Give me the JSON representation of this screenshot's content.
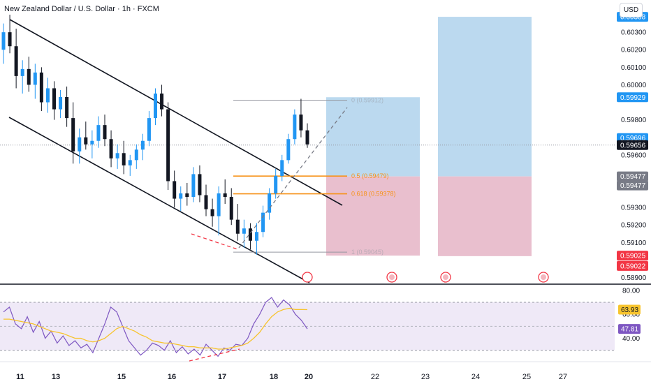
{
  "header": {
    "title": "New Zealand Dollar / U.S. Dollar · 1h · FXCM",
    "currency": "USD"
  },
  "chart_data": [
    {
      "type": "candlestick",
      "title": "New Zealand Dollar / U.S. Dollar · 1h · FXCM",
      "price_axis": {
        "ticks": [
          "0.60300",
          "0.60200",
          "0.60100",
          "0.60000",
          "0.59800",
          "0.59600",
          "0.59300",
          "0.59200",
          "0.59100",
          "0.58900"
        ],
        "ylim": [
          0.5887,
          0.6046
        ]
      },
      "price_badges": [
        {
          "label": "0.60388",
          "color": "#2196f3"
        },
        {
          "label": "0.59929",
          "color": "#2196f3"
        },
        {
          "label": "0.59696",
          "color": "#2196f3"
        },
        {
          "label": "0.59656",
          "color": "#131722"
        },
        {
          "label": "0.59477",
          "color": "#787b86"
        },
        {
          "label": "0.59477",
          "color": "#787b86"
        },
        {
          "label": "0.59025",
          "color": "#f23645"
        },
        {
          "label": "0.59022",
          "color": "#f23645"
        }
      ],
      "x_axis": {
        "ticks": [
          "11",
          "13",
          "15",
          "16",
          "17",
          "18",
          "20",
          "22",
          "23",
          "24",
          "25",
          "27"
        ]
      },
      "series": [
        {
          "type": "candles",
          "values": [
            [
              0.602,
              0.6035,
              0.6012,
              0.603
            ],
            [
              0.603,
              0.604,
              0.6018,
              0.6022
            ],
            [
              0.6022,
              0.6032,
              0.5998,
              0.6005
            ],
            [
              0.6005,
              0.6014,
              0.5995,
              0.6009
            ],
            [
              0.6009,
              0.6016,
              0.5996,
              0.6
            ],
            [
              0.6,
              0.6012,
              0.5992,
              0.6007
            ],
            [
              0.6007,
              0.601,
              0.5985,
              0.599
            ],
            [
              0.599,
              0.6004,
              0.5984,
              0.5998
            ],
            [
              0.5998,
              0.6002,
              0.598,
              0.5986
            ],
            [
              0.5986,
              0.5997,
              0.5981,
              0.5993
            ],
            [
              0.5993,
              0.5999,
              0.5976,
              0.5981
            ],
            [
              0.5981,
              0.599,
              0.5955,
              0.5962
            ],
            [
              0.5962,
              0.5975,
              0.5955,
              0.597
            ],
            [
              0.597,
              0.5979,
              0.5963,
              0.5966
            ],
            [
              0.5966,
              0.5974,
              0.5958,
              0.5968
            ],
            [
              0.5968,
              0.5982,
              0.5964,
              0.5977
            ],
            [
              0.5977,
              0.5983,
              0.5965,
              0.5969
            ],
            [
              0.5969,
              0.5974,
              0.5953,
              0.5958
            ],
            [
              0.5958,
              0.5966,
              0.5952,
              0.5961
            ],
            [
              0.5961,
              0.5968,
              0.5949,
              0.5954
            ],
            [
              0.5954,
              0.596,
              0.5948,
              0.5957
            ],
            [
              0.5957,
              0.5966,
              0.5952,
              0.5963
            ],
            [
              0.5963,
              0.5972,
              0.5957,
              0.5968
            ],
            [
              0.5968,
              0.5985,
              0.5965,
              0.5981
            ],
            [
              0.5981,
              0.5998,
              0.5977,
              0.5995
            ],
            [
              0.5995,
              0.6,
              0.5982,
              0.5986
            ],
            [
              0.5986,
              0.599,
              0.594,
              0.5945
            ],
            [
              0.5945,
              0.5951,
              0.593,
              0.5935
            ],
            [
              0.5935,
              0.5942,
              0.5928,
              0.5938
            ],
            [
              0.5938,
              0.5944,
              0.5931,
              0.5936
            ],
            [
              0.5936,
              0.5953,
              0.5933,
              0.5949
            ],
            [
              0.5949,
              0.5954,
              0.5933,
              0.5937
            ],
            [
              0.5937,
              0.5943,
              0.5925,
              0.5929
            ],
            [
              0.5929,
              0.5935,
              0.5919,
              0.5925
            ],
            [
              0.5925,
              0.5942,
              0.5914,
              0.5938
            ],
            [
              0.5938,
              0.5946,
              0.5932,
              0.5936
            ],
            [
              0.5936,
              0.5941,
              0.592,
              0.5923
            ],
            [
              0.5923,
              0.5932,
              0.5911,
              0.5915
            ],
            [
              0.5915,
              0.5923,
              0.5907,
              0.5918
            ],
            [
              0.5918,
              0.5921,
              0.5906,
              0.5911
            ],
            [
              0.5911,
              0.5921,
              0.5903,
              0.5916
            ],
            [
              0.5916,
              0.5931,
              0.5913,
              0.5927
            ],
            [
              0.5927,
              0.5941,
              0.5923,
              0.5938
            ],
            [
              0.5938,
              0.5952,
              0.5935,
              0.5948
            ],
            [
              0.5948,
              0.596,
              0.5945,
              0.5957
            ],
            [
              0.5957,
              0.5972,
              0.5955,
              0.5969
            ],
            [
              0.5969,
              0.5986,
              0.5966,
              0.5983
            ],
            [
              0.5983,
              0.5992,
              0.597,
              0.5974
            ],
            [
              0.5974,
              0.5978,
              0.5964,
              0.5966
            ]
          ]
        }
      ],
      "annotations": {
        "fib_levels": [
          {
            "label": "0 (0.59912)",
            "value": 0.59912,
            "color": "#9598a1"
          },
          {
            "label": "0.5 (0.59479)",
            "value": 0.59479,
            "color": "#f7931a"
          },
          {
            "label": "0.618 (0.59378)",
            "value": 0.59378,
            "color": "#f7931a"
          },
          {
            "label": "1 (0.59045)",
            "value": 0.59045,
            "color": "#9598a1"
          }
        ],
        "positions": [
          {
            "profit_top": 0.59929,
            "entry": 0.59477,
            "stop": 0.59025
          },
          {
            "profit_top": 0.60388,
            "entry": 0.59477,
            "stop": 0.59022
          }
        ],
        "current_price": 0.59656
      }
    },
    {
      "type": "line",
      "title": "RSI",
      "axis_ticks": [
        "80.00",
        "60.00",
        "40.00"
      ],
      "ylim": [
        24,
        84
      ],
      "bands": [
        70,
        30
      ],
      "badges": [
        {
          "label": "63.93",
          "color": "#f7c42e"
        },
        {
          "label": "47.81",
          "color": "#7e57c2"
        }
      ],
      "series": [
        {
          "color": "#7e57c2",
          "values": [
            62,
            66,
            52,
            48,
            58,
            45,
            54,
            40,
            46,
            36,
            42,
            34,
            38,
            32,
            35,
            28,
            40,
            52,
            66,
            62,
            50,
            38,
            32,
            26,
            30,
            36,
            34,
            30,
            38,
            28,
            33,
            27,
            31,
            26,
            35,
            30,
            25,
            32,
            30,
            35,
            34,
            40,
            52,
            60,
            70,
            74,
            66,
            72,
            68,
            60,
            55,
            47.81
          ]
        },
        {
          "color": "#f7c42e",
          "values": [
            56,
            56,
            55,
            54,
            53,
            52,
            50,
            48,
            46,
            45,
            44,
            42,
            40,
            40,
            38,
            37,
            38,
            40,
            44,
            48,
            50,
            48,
            46,
            43,
            41,
            38,
            37,
            36,
            36,
            35,
            34,
            33,
            33,
            32,
            32,
            32,
            31,
            31,
            32,
            33,
            34,
            36,
            40,
            45,
            52,
            58,
            62,
            64,
            65,
            64,
            64,
            63.93
          ]
        }
      ]
    }
  ]
}
